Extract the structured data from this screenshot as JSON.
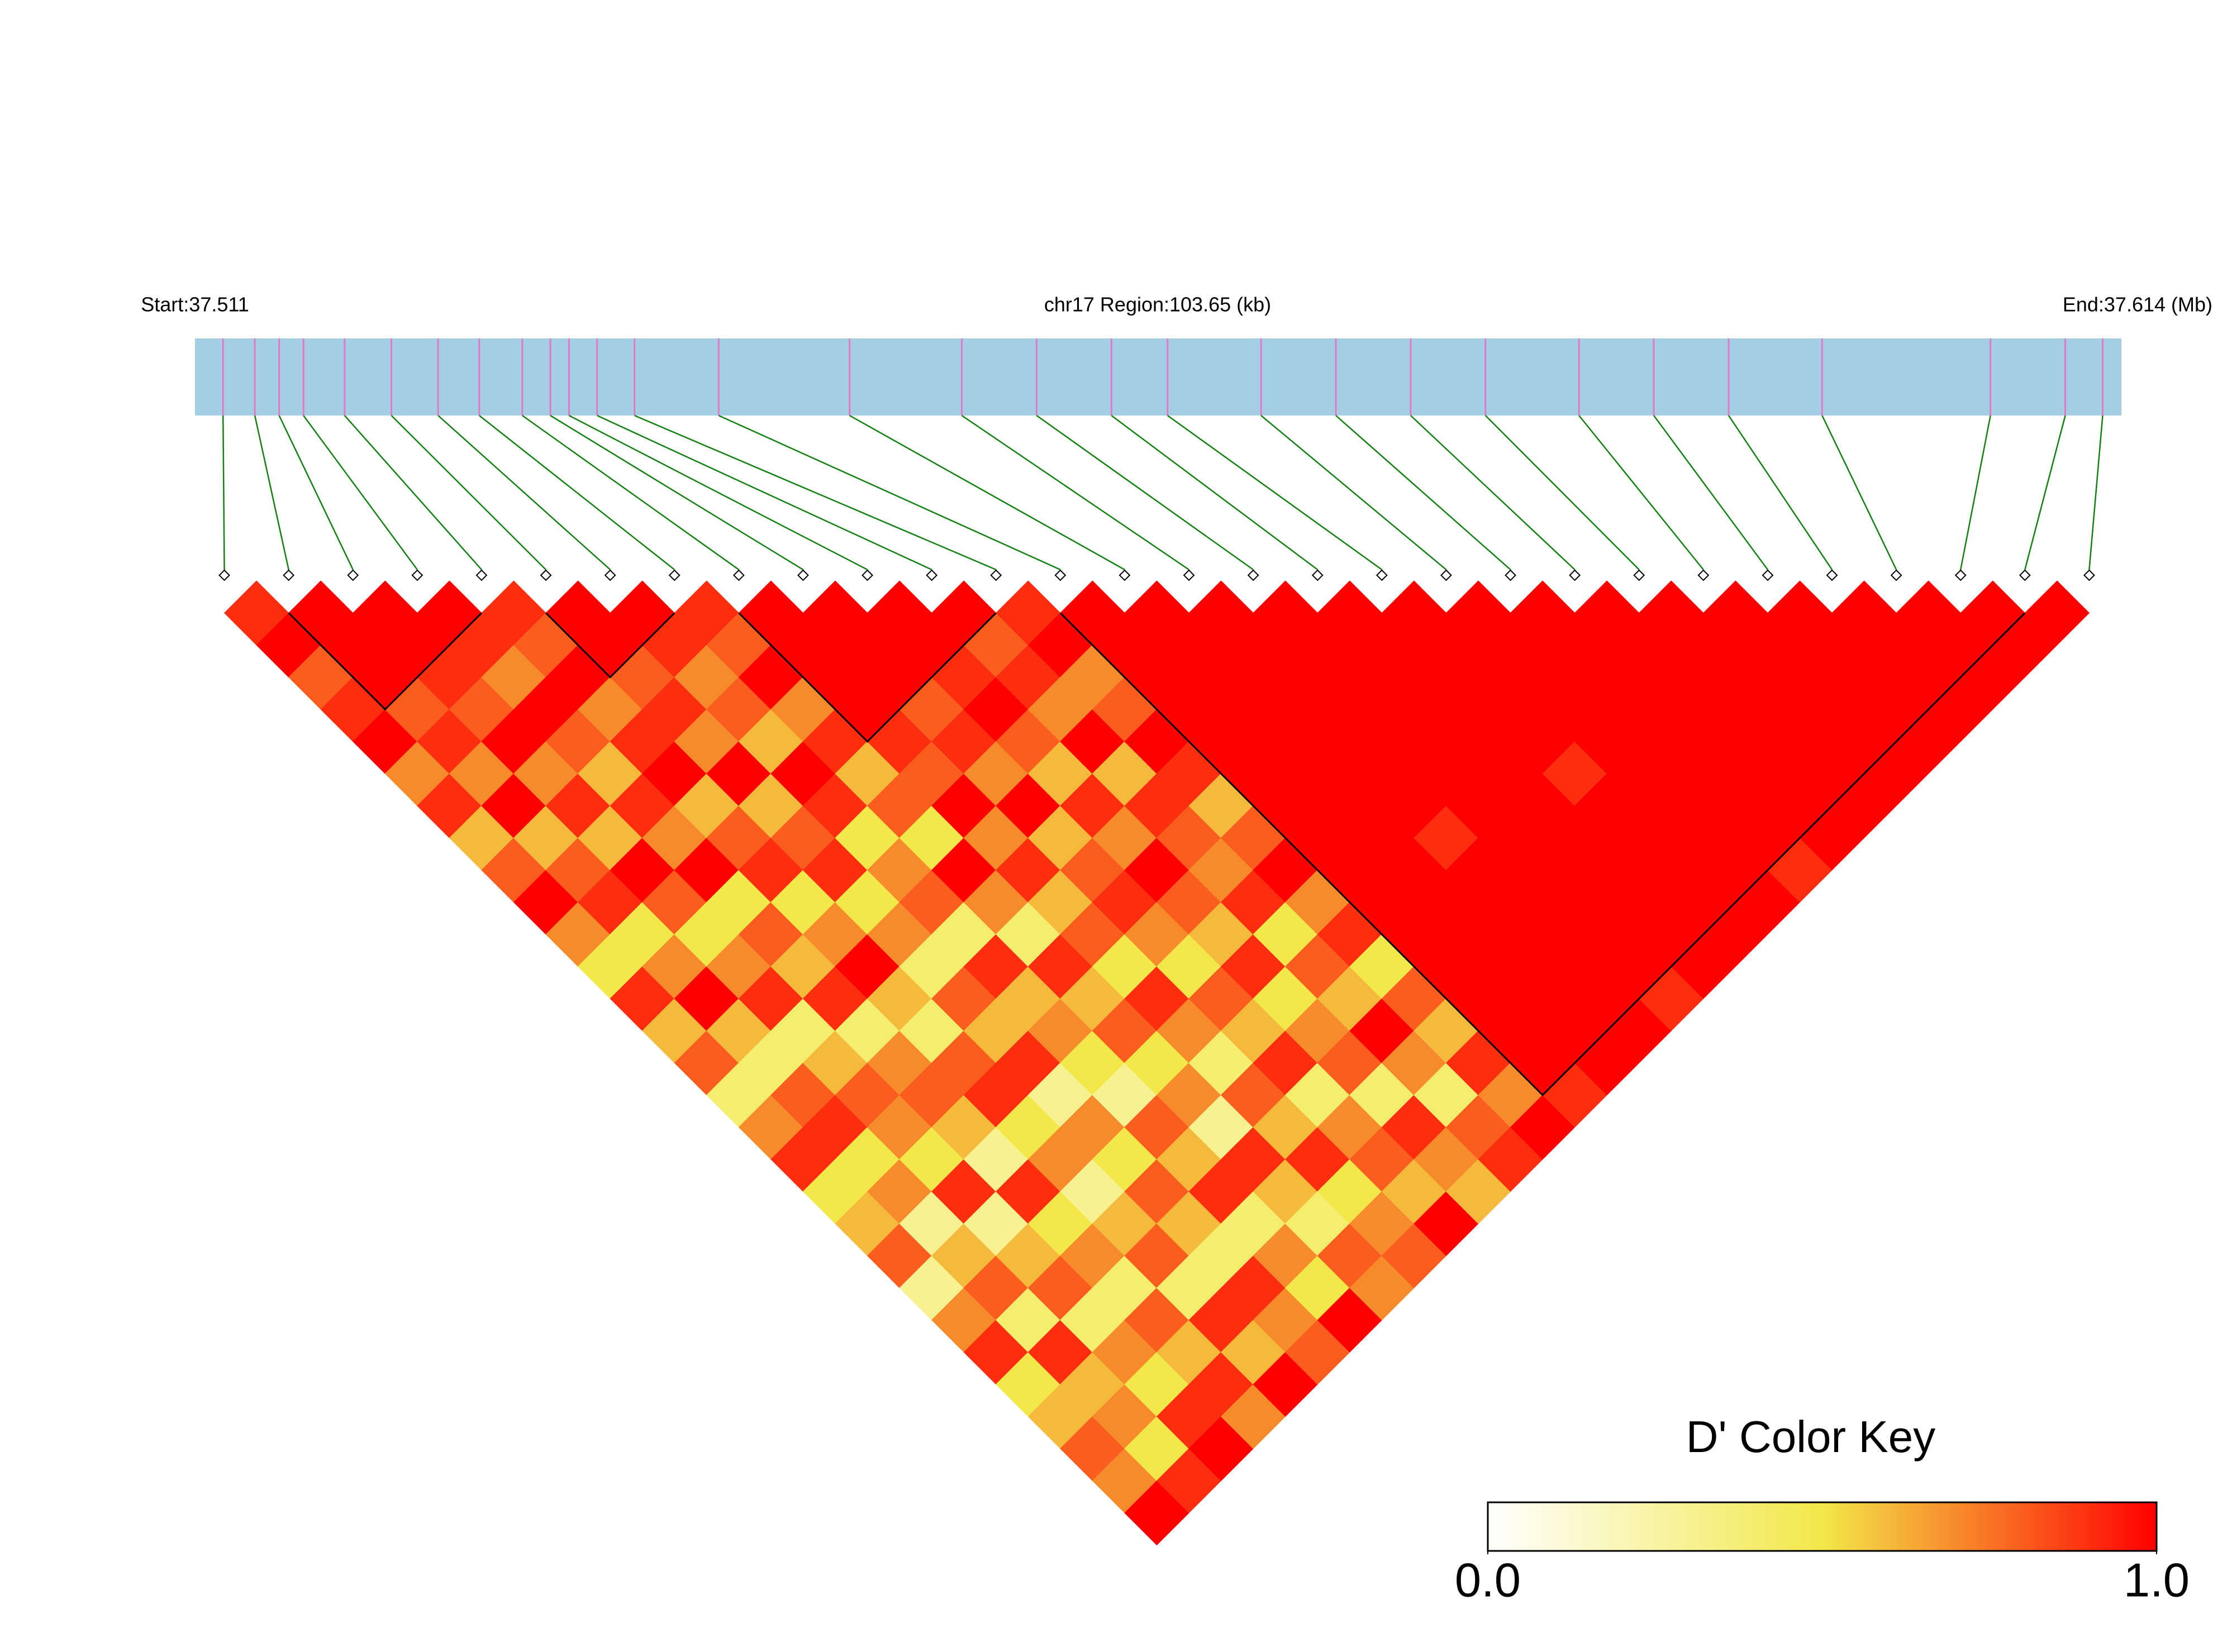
{
  "chart_data": {
    "type": "ld_heatmap",
    "title": "chr17 Region:103.65 (kb)",
    "start_label": "Start:37.511",
    "end_label": "End:37.614 (Mb)",
    "xlim": [
      37.511,
      37.614
    ],
    "positions": [
      37.5125,
      37.5142,
      37.5155,
      37.5168,
      37.519,
      37.5215,
      37.524,
      37.5262,
      37.5285,
      37.53,
      37.531,
      37.5325,
      37.5345,
      37.539,
      37.546,
      37.552,
      37.556,
      37.56,
      37.563,
      37.568,
      37.572,
      37.576,
      37.58,
      37.585,
      37.589,
      37.593,
      37.598,
      37.607,
      37.611,
      37.613
    ],
    "matrix": [
      [
        0.9,
        1,
        0.8,
        0.9,
        1,
        0.7,
        0.9,
        0.6,
        0.8,
        1,
        0.7,
        0.5,
        0.9,
        0.6,
        0.8,
        0.4,
        0.7,
        0.9,
        0.5,
        0.6,
        0.8,
        0.3,
        0.7,
        0.9,
        0.5,
        0.6,
        0.8,
        0.7,
        1
      ],
      [
        1,
        1,
        1,
        0.8,
        0.9,
        0.7,
        1,
        0.6,
        0.8,
        0.9,
        0.5,
        0.7,
        1,
        0.6,
        0.4,
        0.8,
        0.9,
        0.5,
        0.7,
        0.3,
        0.6,
        0.8,
        0.4,
        0.9,
        0.6,
        0.7,
        0.5,
        0.9
      ],
      [
        1,
        1,
        0.9,
        0.8,
        1,
        0.7,
        0.9,
        0.6,
        1,
        0.8,
        0.5,
        0.7,
        0.9,
        0.4,
        0.6,
        0.8,
        0.7,
        0.5,
        0.9,
        0.3,
        0.6,
        0.8,
        0.4,
        0.7,
        0.5,
        0.9,
        1
      ],
      [
        1,
        0.9,
        0.7,
        1,
        0.8,
        0.6,
        0.9,
        0.7,
        1,
        0.5,
        0.8,
        0.6,
        0.9,
        0.4,
        0.7,
        0.8,
        0.6,
        0.3,
        0.9,
        0.5,
        0.7,
        0.4,
        0.8,
        0.6,
        0.9,
        0.7
      ],
      [
        0.9,
        0.8,
        1,
        0.7,
        0.9,
        1,
        0.6,
        0.8,
        0.9,
        0.5,
        0.7,
        1,
        0.6,
        0.4,
        0.8,
        0.9,
        0.5,
        0.7,
        0.3,
        0.6,
        0.8,
        0.4,
        0.9,
        0.6,
        1
      ],
      [
        1,
        1,
        0.8,
        0.9,
        0.7,
        1,
        0.6,
        0.8,
        0.9,
        0.5,
        0.7,
        0.4,
        0.8,
        0.6,
        0.9,
        0.3,
        0.7,
        0.5,
        0.8,
        0.6,
        0.4,
        0.9,
        0.7,
        0.8
      ],
      [
        1,
        0.9,
        0.7,
        0.8,
        0.6,
        1,
        0.9,
        0.5,
        0.7,
        0.8,
        0.4,
        0.9,
        0.6,
        0.7,
        0.5,
        0.3,
        0.8,
        0.6,
        0.9,
        0.4,
        0.7,
        0.5,
        1
      ],
      [
        0.9,
        0.8,
        1,
        0.7,
        0.9,
        0.6,
        0.8,
        0.5,
        1,
        0.7,
        0.4,
        0.9,
        0.6,
        0.8,
        0.5,
        0.7,
        0.3,
        0.9,
        0.6,
        0.4,
        0.8,
        0.7
      ],
      [
        1,
        1,
        1,
        1,
        0.9,
        0.8,
        1,
        0.7,
        0.9,
        0.6,
        0.8,
        0.5,
        0.9,
        0.7,
        0.4,
        0.8,
        0.6,
        0.9,
        0.5,
        0.7,
        0.8
      ],
      [
        1,
        1,
        1,
        0.8,
        0.9,
        0.7,
        1,
        0.6,
        0.8,
        0.9,
        0.7,
        0.5,
        0.8,
        0.6,
        0.9,
        0.4,
        0.7,
        0.8,
        0.6,
        1
      ],
      [
        1,
        1,
        0.9,
        1,
        0.8,
        0.6,
        0.9,
        0.7,
        1,
        0.8,
        0.6,
        0.9,
        0.5,
        0.7,
        0.8,
        0.4,
        0.9,
        0.7,
        0.6
      ],
      [
        1,
        0.8,
        0.9,
        0.7,
        1,
        0.6,
        0.9,
        0.8,
        0.7,
        0.9,
        0.5,
        0.8,
        0.6,
        1,
        0.7,
        0.4,
        0.8,
        0.9
      ],
      [
        0.9,
        1,
        0.7,
        0.8,
        1,
        0.9,
        0.6,
        0.8,
        1,
        0.7,
        0.9,
        0.5,
        0.8,
        0.6,
        0.9,
        0.7,
        1
      ],
      [
        1,
        1,
        1,
        1,
        1,
        1,
        1,
        1,
        1,
        1,
        1,
        1,
        1,
        1,
        1,
        0.9
      ],
      [
        1,
        1,
        1,
        1,
        1,
        1,
        1,
        1,
        1,
        1,
        1,
        1,
        1,
        1,
        1
      ],
      [
        1,
        1,
        1,
        1,
        1,
        1,
        1,
        0.9,
        1,
        1,
        1,
        1,
        1,
        1
      ],
      [
        1,
        1,
        1,
        1,
        1,
        1,
        1,
        1,
        1,
        1,
        1,
        1,
        0.9
      ],
      [
        1,
        1,
        1,
        1,
        1,
        1,
        1,
        1,
        1,
        1,
        1,
        1
      ],
      [
        1,
        1,
        1,
        1,
        1,
        0.9,
        1,
        1,
        1,
        1,
        1
      ],
      [
        1,
        1,
        1,
        1,
        1,
        1,
        1,
        1,
        1,
        1
      ],
      [
        1,
        1,
        1,
        1,
        1,
        1,
        1,
        1,
        0.9
      ],
      [
        1,
        1,
        1,
        1,
        1,
        1,
        1,
        1
      ],
      [
        1,
        1,
        1,
        1,
        1,
        1,
        1
      ],
      [
        1,
        1,
        1,
        1,
        1,
        1
      ],
      [
        1,
        1,
        1,
        1,
        1
      ],
      [
        1,
        1,
        1,
        1
      ],
      [
        1,
        1,
        1
      ],
      [
        1,
        1
      ],
      [
        1
      ]
    ],
    "blocks": [
      [
        1,
        4
      ],
      [
        5,
        7
      ],
      [
        8,
        12
      ],
      [
        13,
        28
      ]
    ],
    "colorbar": {
      "title": "D' Color Key",
      "lim": [
        0,
        1
      ],
      "ticks": [
        {
          "value": 0,
          "label": "0.0"
        },
        {
          "value": 1,
          "label": "1.0"
        }
      ],
      "colors": [
        "#ffffff",
        "#f2e84a",
        "#ff0000"
      ]
    },
    "ruler_color": "#a6cee3",
    "tick_color": "#e07ac8",
    "link_color": "#128012"
  }
}
